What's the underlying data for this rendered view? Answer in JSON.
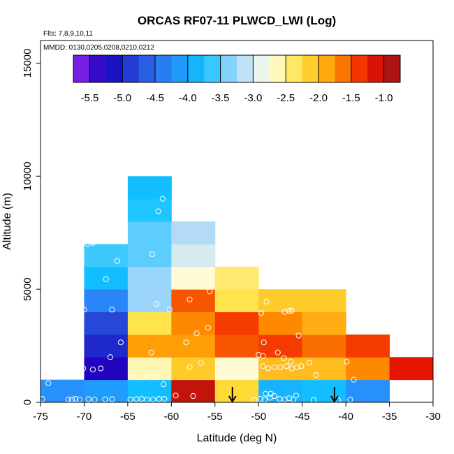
{
  "chart_data": {
    "type": "heatmap",
    "title": "ORCAS RF07-11 PLWCD_LWI (Log)",
    "annotations": [
      "Flts: 7,8,9,10,11",
      "MMDD: 0130,0205,0208,0210,0212"
    ],
    "xlabel": "Latitude (deg N)",
    "ylabel": "Altitude (m)",
    "xlim": [
      -75,
      -30
    ],
    "ylim": [
      0,
      16000
    ],
    "x_ticks": [
      -75,
      -70,
      -65,
      -60,
      -55,
      -50,
      -45,
      -40,
      -35,
      -30
    ],
    "y_ticks": [
      0,
      5000,
      10000,
      15000
    ],
    "x_tick_labels": [
      "-75",
      "-70",
      "-65",
      "-60",
      "-55",
      "-50",
      "-45",
      "-40",
      "-35",
      "-30"
    ],
    "y_tick_labels": [
      "0",
      "5000",
      "10000",
      "15000"
    ],
    "bin_width_lat": 5,
    "bin_height_m": 1000,
    "colorbar": {
      "range": [
        -5.75,
        -0.75
      ],
      "ticks": [
        -5.5,
        -5.0,
        -4.5,
        -4.0,
        -3.5,
        -3.0,
        -2.5,
        -2.0,
        -1.5,
        -1.0
      ],
      "tick_labels": [
        "-5.5",
        "-5.0",
        "-4.5",
        "-4.0",
        "-3.5",
        "-3.0",
        "-2.5",
        "-2.0",
        "-1.5",
        "-1.0"
      ],
      "placement": "top-inside"
    },
    "cells": [
      {
        "lat": -75,
        "alt": 0,
        "value": -4.2
      },
      {
        "lat": -70,
        "alt": 0,
        "value": -4.1
      },
      {
        "lat": -65,
        "alt": 0,
        "value": -3.8
      },
      {
        "lat": -60,
        "alt": 0,
        "value": -1.0
      },
      {
        "lat": -55,
        "alt": 0,
        "value": -2.2
      },
      {
        "lat": -50,
        "alt": 0,
        "value": -3.9
      },
      {
        "lat": -45,
        "alt": 0,
        "value": -3.8
      },
      {
        "lat": -40,
        "alt": 0,
        "value": -4.2
      },
      {
        "lat": -70,
        "alt": 1000,
        "value": -5.3
      },
      {
        "lat": -65,
        "alt": 1000,
        "value": -2.6
      },
      {
        "lat": -60,
        "alt": 1000,
        "value": -2.1
      },
      {
        "lat": -55,
        "alt": 1000,
        "value": -2.7
      },
      {
        "lat": -50,
        "alt": 1000,
        "value": -2.0
      },
      {
        "lat": -45,
        "alt": 1000,
        "value": -2.0
      },
      {
        "lat": -40,
        "alt": 1000,
        "value": -1.7
      },
      {
        "lat": -35,
        "alt": 1000,
        "value": -1.2
      },
      {
        "lat": -70,
        "alt": 2000,
        "value": -5.0
      },
      {
        "lat": -65,
        "alt": 2000,
        "value": -1.8
      },
      {
        "lat": -60,
        "alt": 2000,
        "value": -1.8
      },
      {
        "lat": -55,
        "alt": 2000,
        "value": -1.5
      },
      {
        "lat": -50,
        "alt": 2000,
        "value": -1.4
      },
      {
        "lat": -45,
        "alt": 2000,
        "value": -1.6
      },
      {
        "lat": -40,
        "alt": 2000,
        "value": -1.4
      },
      {
        "lat": -70,
        "alt": 3000,
        "value": -4.8
      },
      {
        "lat": -65,
        "alt": 3000,
        "value": -2.3
      },
      {
        "lat": -60,
        "alt": 3000,
        "value": -1.7
      },
      {
        "lat": -55,
        "alt": 3000,
        "value": -1.4
      },
      {
        "lat": -50,
        "alt": 3000,
        "value": -1.7
      },
      {
        "lat": -45,
        "alt": 3000,
        "value": -1.9
      },
      {
        "lat": -70,
        "alt": 4000,
        "value": -4.3
      },
      {
        "lat": -65,
        "alt": 4000,
        "value": -3.3
      },
      {
        "lat": -60,
        "alt": 4000,
        "value": -1.5
      },
      {
        "lat": -55,
        "alt": 4000,
        "value": -2.3
      },
      {
        "lat": -50,
        "alt": 4000,
        "value": -2.1
      },
      {
        "lat": -45,
        "alt": 4000,
        "value": -2.1
      },
      {
        "lat": -70,
        "alt": 5000,
        "value": -3.8
      },
      {
        "lat": -65,
        "alt": 5000,
        "value": -3.3
      },
      {
        "lat": -60,
        "alt": 5000,
        "value": -2.7
      },
      {
        "lat": -55,
        "alt": 5000,
        "value": -2.4
      },
      {
        "lat": -70,
        "alt": 6000,
        "value": -3.6
      },
      {
        "lat": -65,
        "alt": 6000,
        "value": -3.5
      },
      {
        "lat": -60,
        "alt": 6000,
        "value": -3.0
      },
      {
        "lat": -65,
        "alt": 7000,
        "value": -3.5
      },
      {
        "lat": -60,
        "alt": 7000,
        "value": -3.2
      },
      {
        "lat": -65,
        "alt": 8000,
        "value": -3.7
      },
      {
        "lat": -65,
        "alt": 9000,
        "value": -3.8
      }
    ],
    "sample_points": [
      {
        "lat": -74.8,
        "alt": 150
      },
      {
        "lat": -74.1,
        "alt": 850
      },
      {
        "lat": -71.8,
        "alt": 130
      },
      {
        "lat": -71.4,
        "alt": 120
      },
      {
        "lat": -71.0,
        "alt": 150
      },
      {
        "lat": -70.5,
        "alt": 120
      },
      {
        "lat": -69.5,
        "alt": 140
      },
      {
        "lat": -68.8,
        "alt": 120
      },
      {
        "lat": -67.6,
        "alt": 130
      },
      {
        "lat": -66.8,
        "alt": 140
      },
      {
        "lat": -70.1,
        "alt": 1500
      },
      {
        "lat": -69.0,
        "alt": 1450
      },
      {
        "lat": -68.1,
        "alt": 1500
      },
      {
        "lat": -67.0,
        "alt": 2000
      },
      {
        "lat": -65.8,
        "alt": 2650
      },
      {
        "lat": -70.0,
        "alt": 4100
      },
      {
        "lat": -66.8,
        "alt": 4100
      },
      {
        "lat": -67.5,
        "alt": 5450
      },
      {
        "lat": -66.2,
        "alt": 6250
      },
      {
        "lat": -69.6,
        "alt": 7000
      },
      {
        "lat": -69.0,
        "alt": 7050
      },
      {
        "lat": -64.7,
        "alt": 130
      },
      {
        "lat": -64.0,
        "alt": 140
      },
      {
        "lat": -63.4,
        "alt": 150
      },
      {
        "lat": -62.8,
        "alt": 120
      },
      {
        "lat": -62.1,
        "alt": 130
      },
      {
        "lat": -61.4,
        "alt": 150
      },
      {
        "lat": -60.8,
        "alt": 150
      },
      {
        "lat": -60.9,
        "alt": 800
      },
      {
        "lat": -64.6,
        "alt": 1200
      },
      {
        "lat": -62.9,
        "alt": 1200
      },
      {
        "lat": -61.8,
        "alt": 1150
      },
      {
        "lat": -62.3,
        "alt": 2200
      },
      {
        "lat": -61.7,
        "alt": 4350
      },
      {
        "lat": -60.2,
        "alt": 4100
      },
      {
        "lat": -62.2,
        "alt": 6550
      },
      {
        "lat": -61.5,
        "alt": 8450
      },
      {
        "lat": -61.0,
        "alt": 9000
      },
      {
        "lat": -59.5,
        "alt": 300
      },
      {
        "lat": -57.5,
        "alt": 280
      },
      {
        "lat": -57.9,
        "alt": 1550
      },
      {
        "lat": -56.6,
        "alt": 1750
      },
      {
        "lat": -58.3,
        "alt": 2650
      },
      {
        "lat": -57.1,
        "alt": 3050
      },
      {
        "lat": -55.8,
        "alt": 3300
      },
      {
        "lat": -57.9,
        "alt": 4550
      },
      {
        "lat": -55.6,
        "alt": 4900
      },
      {
        "lat": -50.5,
        "alt": 100
      },
      {
        "lat": -49.8,
        "alt": 150
      },
      {
        "lat": -49.3,
        "alt": 120
      },
      {
        "lat": -48.7,
        "alt": 200
      },
      {
        "lat": -48.2,
        "alt": 280
      },
      {
        "lat": -47.6,
        "alt": 150
      },
      {
        "lat": -47.0,
        "alt": 120
      },
      {
        "lat": -46.5,
        "alt": 180
      },
      {
        "lat": -46.0,
        "alt": 120
      },
      {
        "lat": -45.7,
        "alt": 300
      },
      {
        "lat": -49.2,
        "alt": 380
      },
      {
        "lat": -48.6,
        "alt": 380
      },
      {
        "lat": -49.5,
        "alt": 1600
      },
      {
        "lat": -48.9,
        "alt": 1500
      },
      {
        "lat": -48.2,
        "alt": 1550
      },
      {
        "lat": -47.5,
        "alt": 1550
      },
      {
        "lat": -46.8,
        "alt": 1600
      },
      {
        "lat": -46.2,
        "alt": 1500
      },
      {
        "lat": -45.6,
        "alt": 1550
      },
      {
        "lat": -45.1,
        "alt": 1600
      },
      {
        "lat": -50.0,
        "alt": 2100
      },
      {
        "lat": -49.5,
        "alt": 2050
      },
      {
        "lat": -47.8,
        "alt": 2200
      },
      {
        "lat": -47.1,
        "alt": 1950
      },
      {
        "lat": -46.3,
        "alt": 1800
      },
      {
        "lat": -49.4,
        "alt": 2650
      },
      {
        "lat": -45.4,
        "alt": 2950
      },
      {
        "lat": -49.7,
        "alt": 3950
      },
      {
        "lat": -47.0,
        "alt": 4000
      },
      {
        "lat": -46.5,
        "alt": 4050
      },
      {
        "lat": -49.1,
        "alt": 4450
      },
      {
        "lat": -46.2,
        "alt": 4050
      },
      {
        "lat": -44.2,
        "alt": 1750
      },
      {
        "lat": -43.4,
        "alt": 1200
      },
      {
        "lat": -43.7,
        "alt": 100
      },
      {
        "lat": -40.9,
        "alt": 100
      },
      {
        "lat": -39.9,
        "alt": 1800
      },
      {
        "lat": -39.1,
        "alt": 1000
      },
      {
        "lat": -39.5,
        "alt": 120
      }
    ],
    "markers": [
      {
        "type": "arrow-down",
        "lat": -53.0
      },
      {
        "type": "arrow-down",
        "lat": -41.3
      }
    ]
  }
}
